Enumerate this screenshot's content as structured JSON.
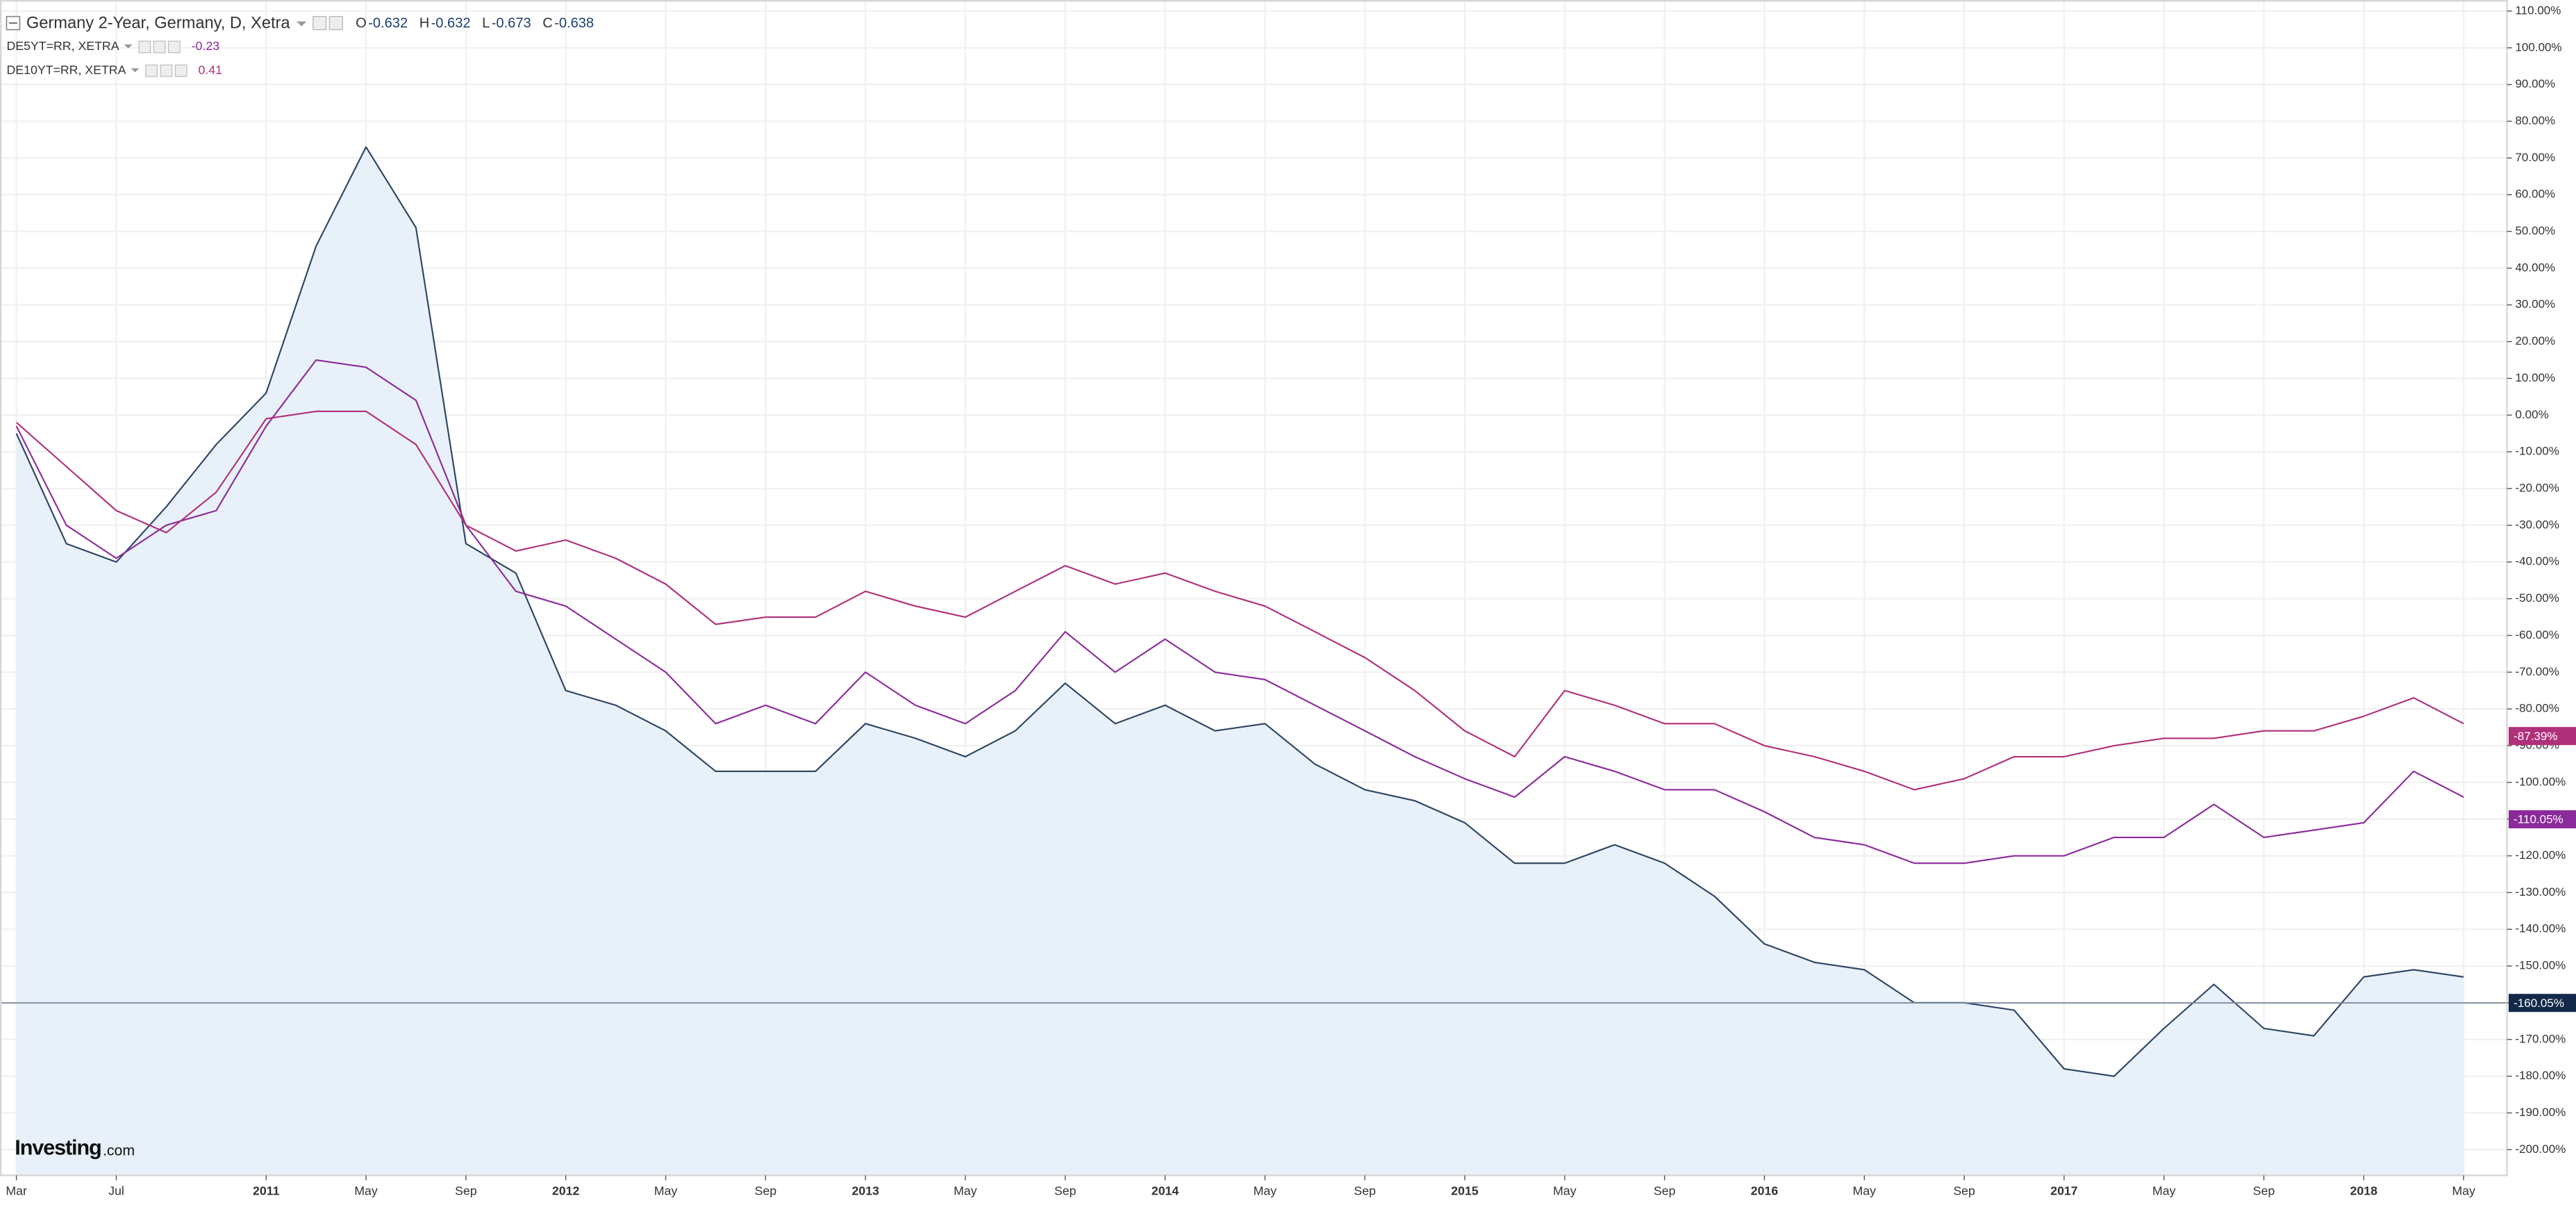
{
  "chart_data": {
    "type": "line",
    "categories": [
      "Mar",
      null,
      "Jul",
      null,
      null,
      "2011",
      null,
      "May",
      null,
      "Sep",
      null,
      "2012",
      null,
      "May",
      null,
      "Sep",
      null,
      "2013",
      null,
      "May",
      null,
      "Sep",
      null,
      "2014",
      null,
      "May",
      null,
      "Sep",
      null,
      "2015",
      null,
      "May",
      null,
      "Sep",
      null,
      "2016",
      null,
      "May",
      null,
      "Sep",
      null,
      "2017",
      null,
      "May",
      null,
      "Sep",
      null,
      "2018",
      null,
      "May"
    ],
    "series": [
      {
        "name": "Germany 2-Year, Germany, D, Xetra",
        "color": "#2b4463",
        "area": true,
        "ohlc": [
          {
            "label": "O",
            "value": -0.632
          },
          {
            "label": "H",
            "value": -0.632
          },
          {
            "label": "L",
            "value": -0.673
          },
          {
            "label": "C",
            "value": -0.638
          }
        ],
        "last": {
          "value": -160.05,
          "label": "-160.05%"
        },
        "values": [
          -5,
          -35,
          -40,
          -25,
          -8,
          6,
          46,
          73,
          51,
          -35,
          -43,
          -75,
          -79,
          -86,
          -97,
          -97,
          -97,
          -84,
          -88,
          -93,
          -86,
          -73,
          -84,
          -79,
          -86,
          -84,
          -95,
          -102,
          -105,
          -111,
          -122,
          -122,
          -117,
          -122,
          -131,
          -144,
          -149,
          -151,
          -160,
          -160,
          -162,
          -178,
          -180,
          -167,
          -155,
          -167,
          -169,
          -153,
          -151,
          -153
        ]
      },
      {
        "name": "DE5YT=RR, XETRA",
        "color": "#8b2a9b",
        "quote": -0.23,
        "last": {
          "value": -110.05,
          "label": "-110.05%"
        },
        "values": [
          -3,
          -30,
          -39,
          -30,
          -26,
          -3,
          15,
          13,
          4,
          -30,
          -48,
          -52,
          -61,
          -70,
          -84,
          -79,
          -84,
          -70,
          -79,
          -84,
          -75,
          -59,
          -70,
          -61,
          -70,
          -72,
          -79,
          -86,
          -93,
          -99,
          -104,
          -93,
          -97,
          -102,
          -102,
          -108,
          -115,
          -117,
          -122,
          -122,
          -120,
          -120,
          -115,
          -115,
          -106,
          -115,
          -113,
          -111,
          -97,
          -104
        ]
      },
      {
        "name": "DE10YT=RR, XETRA",
        "color": "#b0307a",
        "quote": 0.41,
        "last": {
          "value": -87.39,
          "label": "-87.39%"
        },
        "values": [
          -2,
          -14,
          -26,
          -32,
          -21,
          -1,
          1,
          1,
          -8,
          -30,
          -37,
          -34,
          -39,
          -46,
          -57,
          -55,
          -55,
          -48,
          -52,
          -55,
          -48,
          -41,
          -46,
          -43,
          -48,
          -52,
          -59,
          -66,
          -75,
          -86,
          -93,
          -75,
          -79,
          -84,
          -84,
          -90,
          -93,
          -97,
          -102,
          -99,
          -93,
          -93,
          -90,
          -88,
          -88,
          -86,
          -86,
          -82,
          -77,
          -84
        ]
      }
    ],
    "ylim": [
      -207,
      113
    ],
    "yticks": [
      {
        "value": 110,
        "label": "110.00%"
      },
      {
        "value": 100,
        "label": "100.00%"
      },
      {
        "value": 90,
        "label": "90.00%"
      },
      {
        "value": 80,
        "label": "80.00%"
      },
      {
        "value": 70,
        "label": "70.00%"
      },
      {
        "value": 60,
        "label": "60.00%"
      },
      {
        "value": 50,
        "label": "50.00%"
      },
      {
        "value": 40,
        "label": "40.00%"
      },
      {
        "value": 30,
        "label": "30.00%"
      },
      {
        "value": 20,
        "label": "20.00%"
      },
      {
        "value": 10,
        "label": "10.00%"
      },
      {
        "value": 0,
        "label": "0.00%"
      },
      {
        "value": -10,
        "label": "-10.00%"
      },
      {
        "value": -20,
        "label": "-20.00%"
      },
      {
        "value": -30,
        "label": "-30.00%"
      },
      {
        "value": -40,
        "label": "-40.00%"
      },
      {
        "value": -50,
        "label": "-50.00%"
      },
      {
        "value": -60,
        "label": "-60.00%"
      },
      {
        "value": -70,
        "label": "-70.00%"
      },
      {
        "value": -80,
        "label": "-80.00%"
      },
      {
        "value": -90,
        "label": "-90.00%"
      },
      {
        "value": -100,
        "label": "-100.00%"
      },
      {
        "value": -110,
        "label": "-110.00%"
      },
      {
        "value": -120,
        "label": "-120.00%"
      },
      {
        "value": -130,
        "label": "-130.00%"
      },
      {
        "value": -140,
        "label": "-140.00%"
      },
      {
        "value": -150,
        "label": "-150.00%"
      },
      {
        "value": -160,
        "label": "-160.00%"
      },
      {
        "value": -170,
        "label": "-170.00%"
      },
      {
        "value": -180,
        "label": "-180.00%"
      },
      {
        "value": -190,
        "label": "-190.00%"
      },
      {
        "value": -200,
        "label": "-200.00%"
      }
    ],
    "grid": true,
    "brand": {
      "name": "Investing",
      "suffix": ".com"
    }
  }
}
